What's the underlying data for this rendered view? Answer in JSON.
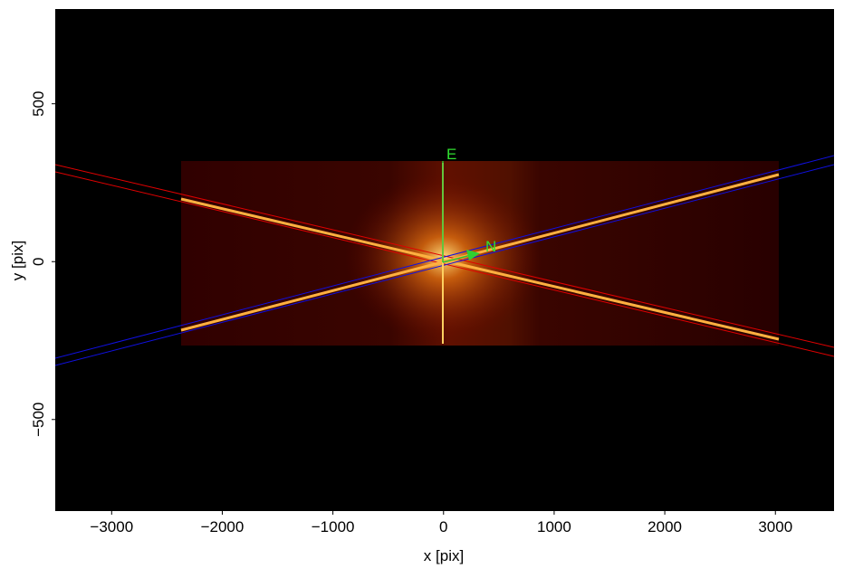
{
  "chart_data": {
    "type": "image",
    "xlabel": "x [pix]",
    "ylabel": "y [pix]",
    "xlim": [
      -3510,
      3530
    ],
    "ylim": [
      -790,
      800
    ],
    "xticks": [
      {
        "value": -3000,
        "label": "−3000"
      },
      {
        "value": -2000,
        "label": "−2000"
      },
      {
        "value": -1000,
        "label": "−1000"
      },
      0,
      1000,
      2000,
      3000
    ],
    "yticks": [
      {
        "value": -500,
        "label": "−500"
      },
      0,
      500
    ],
    "annotations": [
      "E",
      "N"
    ]
  }
}
